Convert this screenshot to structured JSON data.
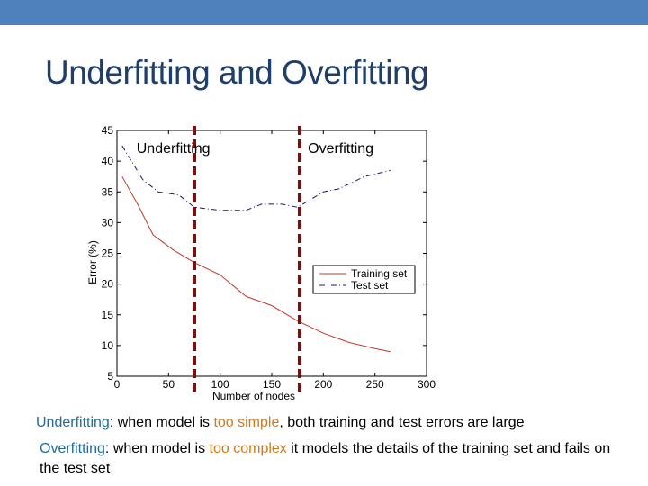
{
  "slide": {
    "title": "Underfitting and Overfitting",
    "accent_color": "#4f81bd"
  },
  "chart_data": {
    "type": "line",
    "title": "",
    "xlabel": "Number of nodes",
    "ylabel": "Error (%)",
    "xlim": [
      0,
      300
    ],
    "ylim": [
      5,
      45
    ],
    "x_ticks": [
      0,
      50,
      100,
      150,
      200,
      250,
      300
    ],
    "y_ticks": [
      5,
      10,
      15,
      20,
      25,
      30,
      35,
      40,
      45
    ],
    "grid": false,
    "legend_position": "right-middle",
    "series": [
      {
        "name": "Training set",
        "style": "solid",
        "color": "#c0392b",
        "x": [
          5,
          20,
          35,
          55,
          75,
          100,
          125,
          150,
          175,
          200,
          225,
          250,
          265
        ],
        "values": [
          37.5,
          33,
          28,
          25.5,
          23.5,
          21.5,
          18,
          16.5,
          14,
          12,
          10.5,
          9.5,
          9
        ]
      },
      {
        "name": "Test set",
        "style": "dashdot",
        "color": "#1a1a6e",
        "x": [
          5,
          25,
          40,
          60,
          75,
          100,
          125,
          140,
          160,
          175,
          190,
          200,
          215,
          240,
          265
        ],
        "values": [
          42.5,
          37,
          35,
          34.5,
          32.5,
          32,
          32,
          33,
          33,
          32.5,
          34,
          35,
          35.5,
          37.5,
          38.5
        ]
      }
    ],
    "annotations": [
      {
        "text": "Underfitting",
        "x": 12,
        "y": 42
      },
      {
        "text": "Overfitting",
        "x": 185,
        "y": 42
      }
    ],
    "vertical_markers": [
      {
        "x": 75,
        "style": "dashed",
        "color": "#7b1010"
      },
      {
        "x": 177,
        "style": "dashed",
        "color": "#7b1010"
      }
    ]
  },
  "bullets": [
    {
      "term": "Underfitting",
      "pre": ": when model is ",
      "highlight": "too simple",
      "post": ", both training and test errors are large"
    },
    {
      "term": "Overfitting",
      "pre": ": when model is ",
      "highlight": "too complex",
      "post": " it models the details of the training set and fails on the test set"
    }
  ]
}
